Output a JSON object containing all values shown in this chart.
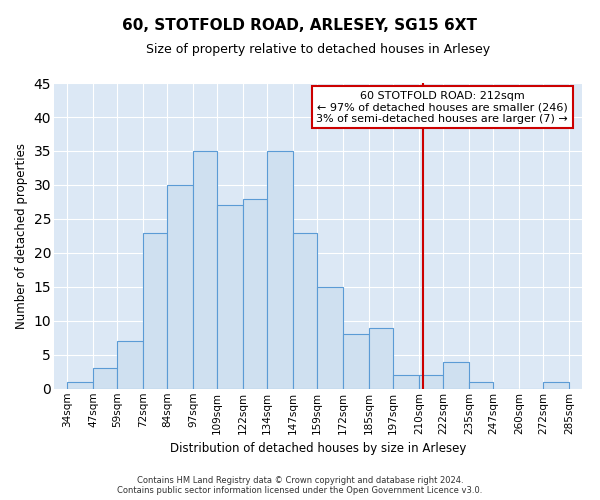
{
  "title": "60, STOTFOLD ROAD, ARLESEY, SG15 6XT",
  "subtitle": "Size of property relative to detached houses in Arlesey",
  "xlabel": "Distribution of detached houses by size in Arlesey",
  "ylabel": "Number of detached properties",
  "bar_color": "#cfe0f0",
  "bar_edge_color": "#5b9bd5",
  "plot_bg_color": "#dce8f5",
  "figure_bg_color": "#ffffff",
  "grid_color": "#ffffff",
  "vline_x": 212,
  "vline_color": "#cc0000",
  "bin_edges": [
    34,
    47,
    59,
    72,
    84,
    97,
    109,
    122,
    134,
    147,
    159,
    172,
    185,
    197,
    210,
    222,
    235,
    247,
    260,
    272,
    285
  ],
  "bar_heights": [
    1,
    3,
    7,
    23,
    30,
    35,
    27,
    28,
    35,
    23,
    15,
    8,
    9,
    2,
    2,
    4,
    1,
    0,
    0,
    1
  ],
  "ylim": [
    0,
    45
  ],
  "yticks": [
    0,
    5,
    10,
    15,
    20,
    25,
    30,
    35,
    40,
    45
  ],
  "xtick_labels": [
    "34sqm",
    "47sqm",
    "59sqm",
    "72sqm",
    "84sqm",
    "97sqm",
    "109sqm",
    "122sqm",
    "134sqm",
    "147sqm",
    "159sqm",
    "172sqm",
    "185sqm",
    "197sqm",
    "210sqm",
    "222sqm",
    "235sqm",
    "247sqm",
    "260sqm",
    "272sqm",
    "285sqm"
  ],
  "annotation_title": "60 STOTFOLD ROAD: 212sqm",
  "annotation_line1": "← 97% of detached houses are smaller (246)",
  "annotation_line2": "3% of semi-detached houses are larger (7) →",
  "footer1": "Contains HM Land Registry data © Crown copyright and database right 2024.",
  "footer2": "Contains public sector information licensed under the Open Government Licence v3.0."
}
